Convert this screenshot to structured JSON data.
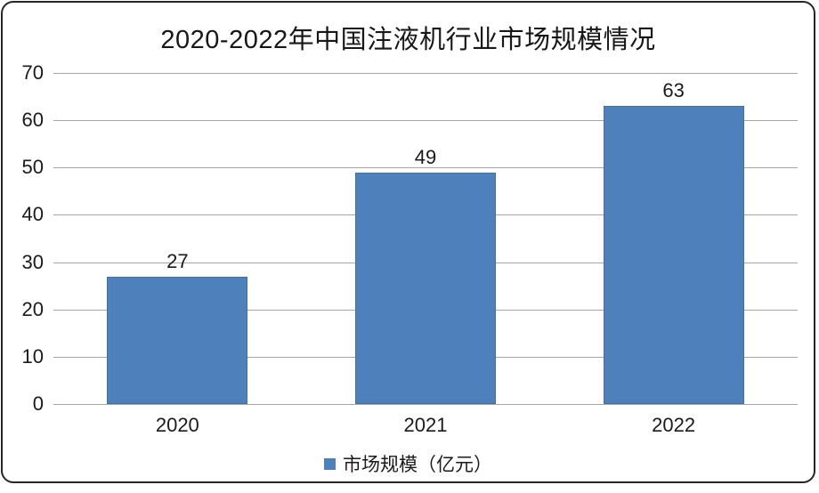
{
  "chart_data": {
    "type": "bar",
    "title": "2020-2022年中国注液机行业市场规模情况",
    "categories": [
      "2020",
      "2021",
      "2022"
    ],
    "values": [
      27,
      49,
      63
    ],
    "series_name": "市场规模（亿元）",
    "xlabel": "",
    "ylabel": "",
    "ylim": [
      0,
      70
    ],
    "ytick_step": 10,
    "ytick_labels": [
      "0",
      "10",
      "20",
      "30",
      "40",
      "50",
      "60",
      "70"
    ],
    "grid": "horizontal",
    "legend_position": "bottom",
    "data_labels_shown": true,
    "colors": {
      "bar_fill": "#4e80bc",
      "bar_border": "#41719c",
      "gridline": "#a6a6a6",
      "text": "#1a1a1a",
      "frame_border": "#262626",
      "background": "#ffffff"
    }
  },
  "legend": {
    "label": "市场规模（亿元）"
  }
}
